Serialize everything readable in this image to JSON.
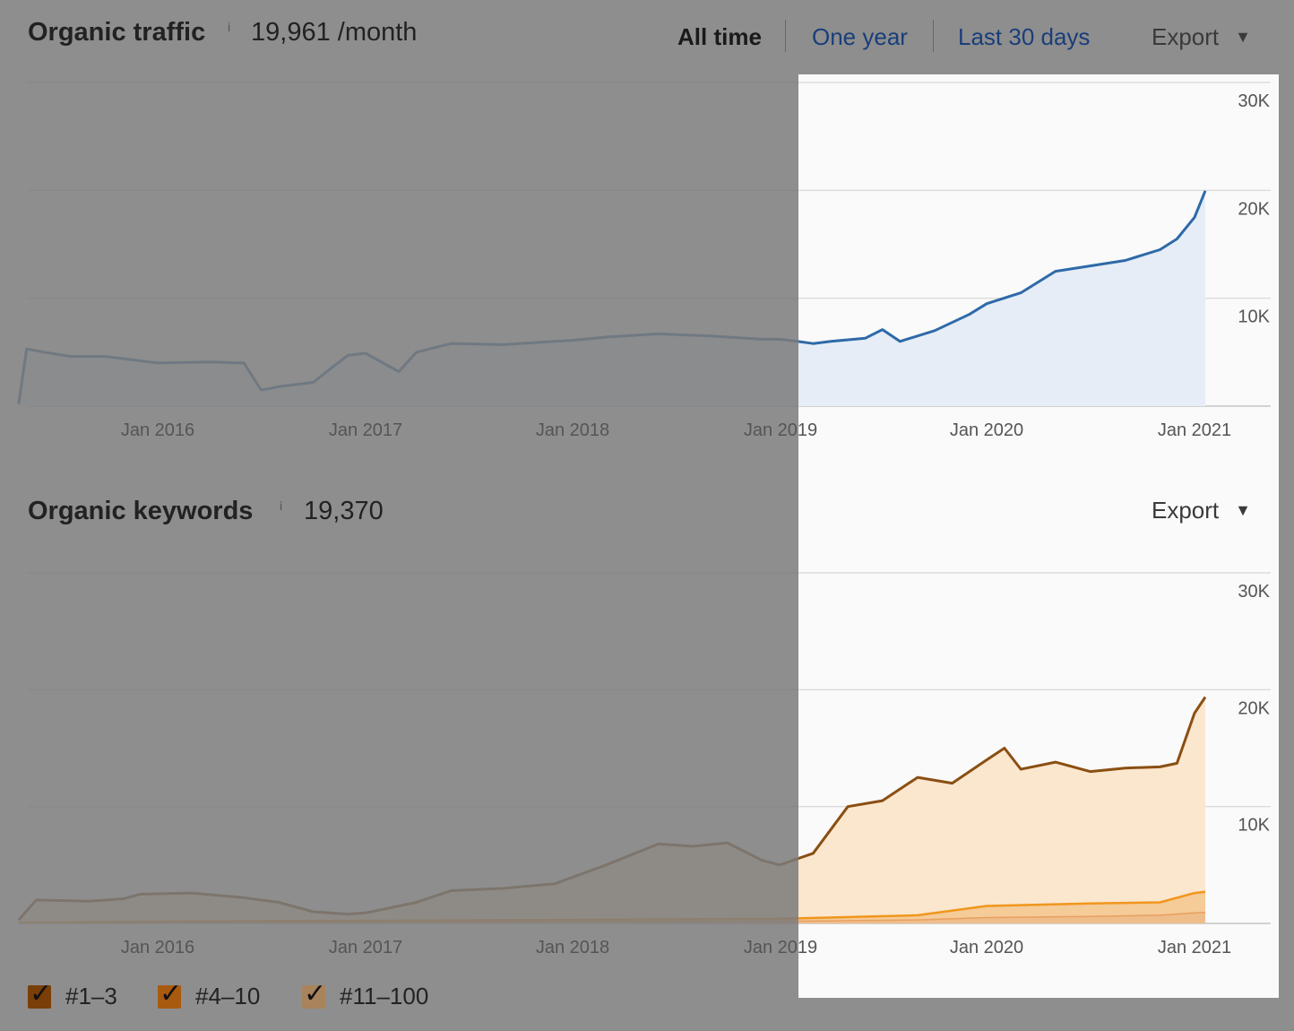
{
  "traffic": {
    "title": "Organic traffic",
    "info": "i",
    "value": "19,961 /month",
    "ranges": [
      "All time",
      "One year",
      "Last 30 days"
    ],
    "export_label": "Export"
  },
  "keywords": {
    "title": "Organic keywords",
    "info": "i",
    "value": "19,370",
    "export_label": "Export",
    "legend": [
      {
        "label": "#1–3",
        "color": "#7a3e08",
        "checked": true
      },
      {
        "label": "#4–10",
        "color": "#a85a10",
        "checked": true
      },
      {
        "label": "#11–100",
        "color": "#a9835c",
        "checked": true
      }
    ]
  },
  "colors": {
    "traffic_line": "#2e6aa8",
    "traffic_fill": "#e6edf6",
    "kw_line_top": "#8a4f12",
    "kw_fill_top": "#fbe6ce",
    "kw_line_mid": "#f0961c",
    "kw_fill_mid": "#f5cb98",
    "overlay": "#7c7c7c"
  },
  "chart_data": [
    {
      "type": "area",
      "x_ticks": [
        "Jan 2016",
        "Jan 2017",
        "Jan 2018",
        "Jan 2019",
        "Jan 2020",
        "Jan 2021"
      ],
      "y_ticks": [
        "10K",
        "20K",
        "30K"
      ],
      "xlim": [
        "2015-05-01",
        "2021-03-01"
      ],
      "ylim": [
        0,
        30000
      ],
      "highlight_range": [
        "2019-01-01",
        "2021-03-01"
      ],
      "series": [
        {
          "x": [
            "2015-05-01",
            "2015-05-15",
            "2015-06-15",
            "2015-08-01",
            "2015-10-01",
            "2016-01-01",
            "2016-04-01",
            "2016-06-01",
            "2016-07-01",
            "2016-07-15",
            "2016-08-01",
            "2016-10-01",
            "2016-11-01",
            "2016-12-01",
            "2017-01-01",
            "2017-03-01",
            "2017-04-01",
            "2017-06-01",
            "2017-09-01",
            "2018-01-01",
            "2018-03-01",
            "2018-06-01",
            "2018-09-01",
            "2018-12-01",
            "2019-01-01",
            "2019-02-01",
            "2019-03-01",
            "2019-04-01",
            "2019-06-01",
            "2019-07-01",
            "2019-08-01",
            "2019-10-01",
            "2019-12-01",
            "2020-01-01",
            "2020-03-01",
            "2020-05-01",
            "2020-07-01",
            "2020-09-01",
            "2020-11-01",
            "2020-12-01",
            "2021-01-01",
            "2021-01-20"
          ],
          "y": [
            200,
            5300,
            5000,
            4600,
            4600,
            4000,
            4100,
            4000,
            1500,
            1600,
            1800,
            2200,
            3500,
            4700,
            4900,
            3200,
            5000,
            5800,
            5700,
            6100,
            6400,
            6700,
            6500,
            6200,
            6200,
            6000,
            5800,
            6000,
            6300,
            7100,
            6000,
            7000,
            8500,
            9500,
            10500,
            12500,
            13000,
            13500,
            14500,
            15500,
            17500,
            19961
          ]
        }
      ]
    },
    {
      "type": "area",
      "x_ticks": [
        "Jan 2016",
        "Jan 2017",
        "Jan 2018",
        "Jan 2019",
        "Jan 2020",
        "Jan 2021"
      ],
      "y_ticks": [
        "10K",
        "20K",
        "30K"
      ],
      "xlim": [
        "2015-05-01",
        "2021-03-01"
      ],
      "ylim": [
        0,
        30000
      ],
      "highlight_range": [
        "2019-01-01",
        "2021-03-01"
      ],
      "series": [
        {
          "label": "#11–100",
          "x": [
            "2015-05-01",
            "2015-06-01",
            "2015-09-01",
            "2015-11-01",
            "2015-12-01",
            "2016-03-01",
            "2016-06-01",
            "2016-08-01",
            "2016-10-01",
            "2016-12-01",
            "2017-01-01",
            "2017-04-01",
            "2017-06-01",
            "2017-09-01",
            "2017-12-01",
            "2018-03-01",
            "2018-06-01",
            "2018-08-01",
            "2018-10-01",
            "2018-12-01",
            "2019-01-01",
            "2019-03-01",
            "2019-05-01",
            "2019-07-01",
            "2019-09-01",
            "2019-11-01",
            "2020-01-01",
            "2020-02-01",
            "2020-03-01",
            "2020-05-01",
            "2020-07-01",
            "2020-09-01",
            "2020-11-01",
            "2020-12-01",
            "2021-01-01",
            "2021-01-20"
          ],
          "y": [
            300,
            2000,
            1900,
            2100,
            2500,
            2600,
            2200,
            1800,
            1000,
            800,
            900,
            1800,
            2800,
            3000,
            3400,
            5000,
            6800,
            6600,
            6900,
            5400,
            5000,
            6000,
            10000,
            10500,
            12500,
            12000,
            14000,
            15000,
            13200,
            13800,
            13000,
            13300,
            13400,
            13700,
            18000,
            19370
          ]
        },
        {
          "label": "#4–10",
          "x": [
            "2015-05-01",
            "2016-01-01",
            "2018-01-01",
            "2019-01-01",
            "2019-09-01",
            "2020-01-01",
            "2020-07-01",
            "2020-11-01",
            "2021-01-01",
            "2021-01-20"
          ],
          "y": [
            50,
            150,
            300,
            400,
            700,
            1500,
            1700,
            1800,
            2600,
            2700
          ]
        },
        {
          "label": "#1–3",
          "x": [
            "2015-05-01",
            "2016-01-01",
            "2018-01-01",
            "2019-01-01",
            "2019-09-01",
            "2020-01-01",
            "2020-07-01",
            "2020-11-01",
            "2021-01-01",
            "2021-01-20"
          ],
          "y": [
            20,
            60,
            120,
            180,
            300,
            500,
            600,
            700,
            900,
            950
          ]
        }
      ]
    }
  ]
}
